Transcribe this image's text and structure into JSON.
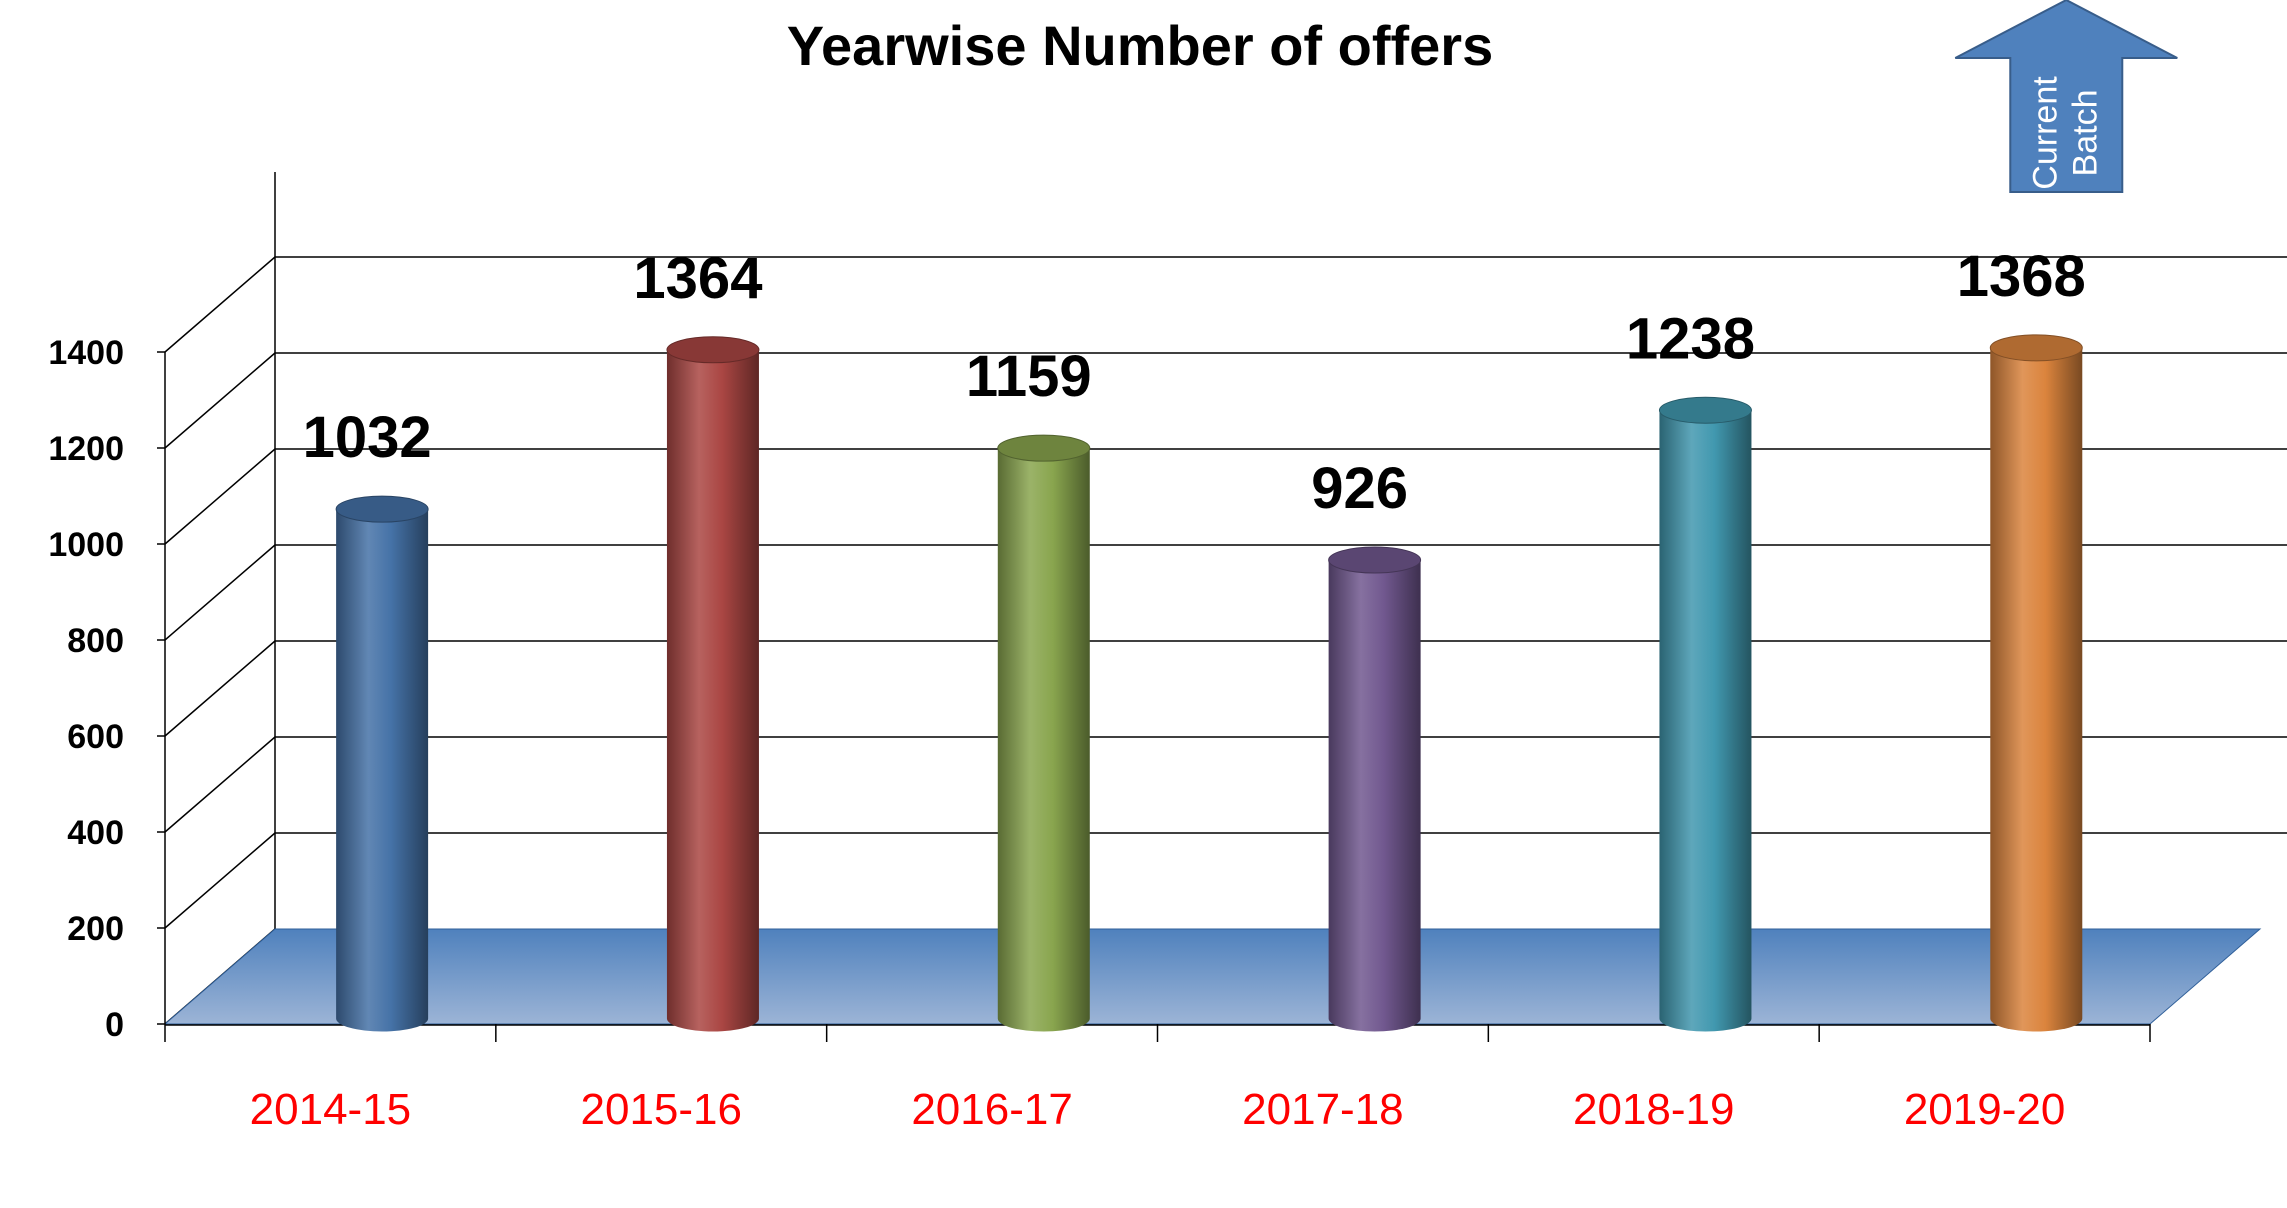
{
  "chart_data": {
    "type": "bar",
    "title": "Yearwise Number of offers",
    "xlabel": "",
    "ylabel": "",
    "categories": [
      "2014-15",
      "2015-16",
      "2016-17",
      "2017-18",
      "2018-19",
      "2019-20"
    ],
    "values": [
      1032,
      1364,
      1159,
      926,
      1238,
      1368
    ],
    "ylim": [
      0,
      1400
    ],
    "yticks": [
      0,
      200,
      400,
      600,
      800,
      1000,
      1200,
      1400
    ],
    "grid": true,
    "legend": "none",
    "bar_colors": [
      "#4572A7",
      "#AA4643",
      "#89A54E",
      "#71588F",
      "#4198AF",
      "#DB843D"
    ],
    "category_label_color": "#FF0000",
    "floor_color": "#5B8CC8",
    "annotation": {
      "lines": [
        "Current",
        "Batch"
      ],
      "target_category": "2019-20",
      "color": "#4F81BD"
    }
  }
}
